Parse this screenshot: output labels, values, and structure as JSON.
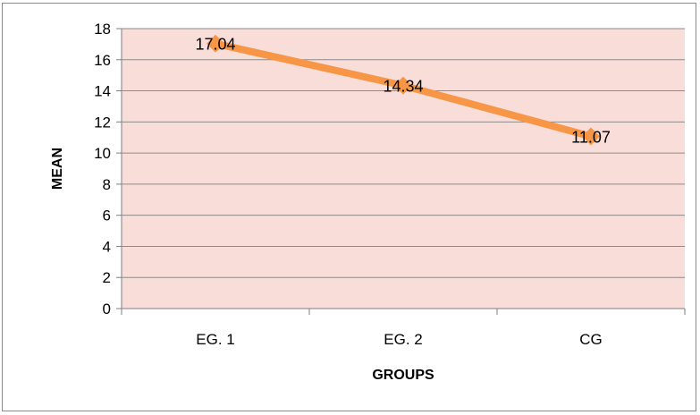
{
  "chart_data": {
    "type": "line",
    "categories": [
      "EG. 1",
      "EG. 2",
      "CG"
    ],
    "series": [
      {
        "values": [
          17.04,
          14.34,
          11.07
        ]
      }
    ],
    "data_labels": [
      "17.04",
      "14.34",
      "11.07"
    ],
    "xlabel": "GROUPS",
    "ylabel": "MEAN",
    "ylim": [
      0,
      18
    ],
    "yticks": [
      0,
      2,
      4,
      6,
      8,
      10,
      12,
      14,
      16,
      18
    ],
    "grid": true,
    "marker": "diamond",
    "colors": {
      "line": "#f79646",
      "plot_background": "#f9ddd8",
      "grid": "#8c8c8c"
    }
  }
}
